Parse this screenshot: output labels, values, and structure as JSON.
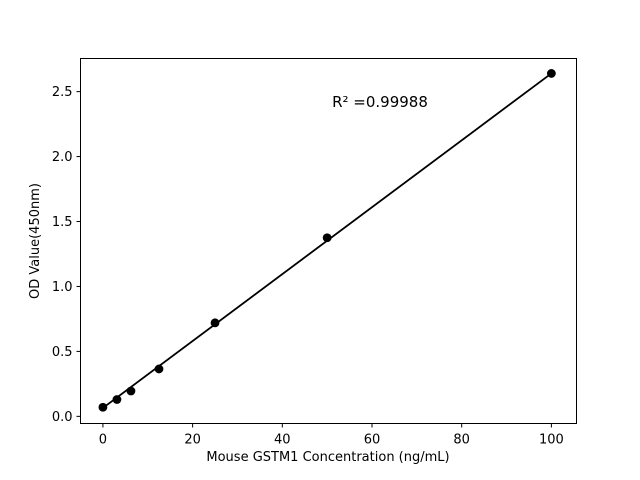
{
  "figure": {
    "background_color": "#ffffff",
    "foreground_color": "#000000"
  },
  "chart_data": {
    "type": "scatter",
    "title": "",
    "xlabel": "Mouse GSTM1 Concentration (ng/mL)",
    "ylabel": "OD Value(450nm)",
    "annotation": "R² =0.99988",
    "grid": false,
    "legend": null,
    "marker_color": "#000000",
    "line_color": "#000000",
    "x_ticks": [
      "0",
      "20",
      "40",
      "60",
      "80",
      "100"
    ],
    "x_tick_values": [
      0,
      20,
      40,
      60,
      80,
      100
    ],
    "y_ticks": [
      "0.0",
      "0.5",
      "1.0",
      "1.5",
      "2.0",
      "2.5"
    ],
    "y_tick_values": [
      0.0,
      0.5,
      1.0,
      1.5,
      2.0,
      2.5
    ],
    "xlim": [
      -5,
      105.6
    ],
    "ylim": [
      -0.055,
      2.755
    ],
    "points": [
      {
        "x": 0,
        "y": 0.07
      },
      {
        "x": 3.125,
        "y": 0.13
      },
      {
        "x": 6.25,
        "y": 0.195
      },
      {
        "x": 12.5,
        "y": 0.365
      },
      {
        "x": 25,
        "y": 0.72
      },
      {
        "x": 50,
        "y": 1.375
      },
      {
        "x": 100,
        "y": 2.64
      }
    ],
    "trendline": {
      "x1": 0,
      "y1": 0.065,
      "x2": 100,
      "y2": 2.64
    }
  }
}
